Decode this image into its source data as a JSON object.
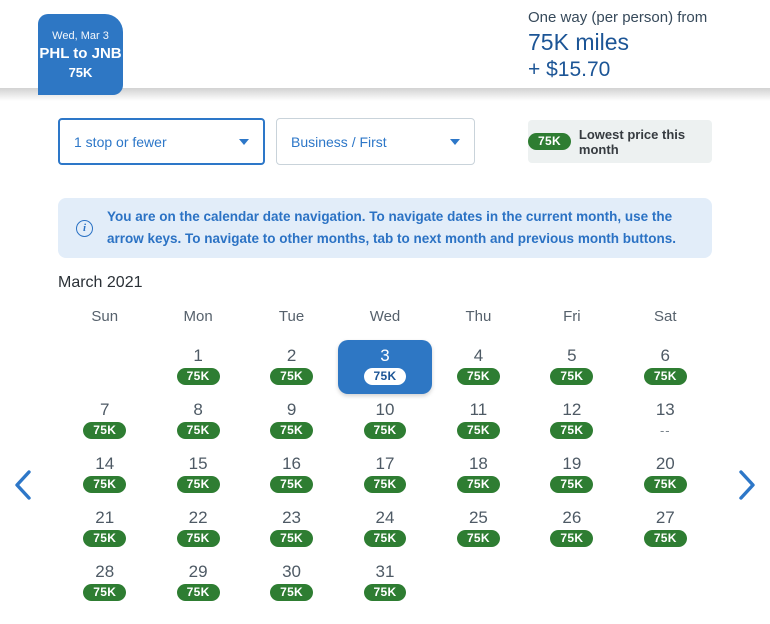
{
  "colors": {
    "brand_blue": "#2e77c4",
    "deep_blue_text": "#1c5596",
    "link_blue": "#2d77c8",
    "lowest_price_green": "#2e7d32",
    "banner_bg": "#e2edf9",
    "banner_text": "#2b72c4",
    "legend_bg": "#edf1f1"
  },
  "icons": {
    "prev_month": "chevron-left",
    "next_month": "chevron-right",
    "info": "info-circle",
    "dropdown": "caret-down"
  },
  "header": {
    "selected_trip": {
      "date": "Wed, Mar 3",
      "route": "PHL to JNB",
      "price": "75K"
    },
    "price_summary": {
      "label": "One way (per person) from",
      "miles": "75K miles",
      "taxes": "+ $15.70"
    }
  },
  "filters": {
    "stops": {
      "value": "1 stop or fewer"
    },
    "cabin": {
      "value": "Business / First"
    }
  },
  "legend": {
    "badge": "75K",
    "label": "Lowest price this month"
  },
  "info_banner": {
    "icon_glyph": "i",
    "text": "You are on the calendar date navigation. To navigate dates in the current month, use the arrow keys. To navigate to other months, tab to next month and previous month buttons."
  },
  "calendar": {
    "month_title": "March 2021",
    "day_headers": [
      "Sun",
      "Mon",
      "Tue",
      "Wed",
      "Thu",
      "Fri",
      "Sat"
    ],
    "weeks": [
      [
        {
          "date": "",
          "badge": ""
        },
        {
          "date": "1",
          "badge": "75K"
        },
        {
          "date": "2",
          "badge": "75K"
        },
        {
          "date": "3",
          "badge": "75K",
          "selected": true
        },
        {
          "date": "4",
          "badge": "75K"
        },
        {
          "date": "5",
          "badge": "75K"
        },
        {
          "date": "6",
          "badge": "75K"
        }
      ],
      [
        {
          "date": "7",
          "badge": "75K"
        },
        {
          "date": "8",
          "badge": "75K"
        },
        {
          "date": "9",
          "badge": "75K"
        },
        {
          "date": "10",
          "badge": "75K"
        },
        {
          "date": "11",
          "badge": "75K"
        },
        {
          "date": "12",
          "badge": "75K"
        },
        {
          "date": "13",
          "badge": "--"
        }
      ],
      [
        {
          "date": "14",
          "badge": "75K"
        },
        {
          "date": "15",
          "badge": "75K"
        },
        {
          "date": "16",
          "badge": "75K"
        },
        {
          "date": "17",
          "badge": "75K"
        },
        {
          "date": "18",
          "badge": "75K"
        },
        {
          "date": "19",
          "badge": "75K"
        },
        {
          "date": "20",
          "badge": "75K"
        }
      ],
      [
        {
          "date": "21",
          "badge": "75K"
        },
        {
          "date": "22",
          "badge": "75K"
        },
        {
          "date": "23",
          "badge": "75K"
        },
        {
          "date": "24",
          "badge": "75K"
        },
        {
          "date": "25",
          "badge": "75K"
        },
        {
          "date": "26",
          "badge": "75K"
        },
        {
          "date": "27",
          "badge": "75K"
        }
      ],
      [
        {
          "date": "28",
          "badge": "75K"
        },
        {
          "date": "29",
          "badge": "75K"
        },
        {
          "date": "30",
          "badge": "75K"
        },
        {
          "date": "31",
          "badge": "75K"
        },
        {
          "date": "",
          "badge": ""
        },
        {
          "date": "",
          "badge": ""
        },
        {
          "date": "",
          "badge": ""
        }
      ]
    ]
  }
}
